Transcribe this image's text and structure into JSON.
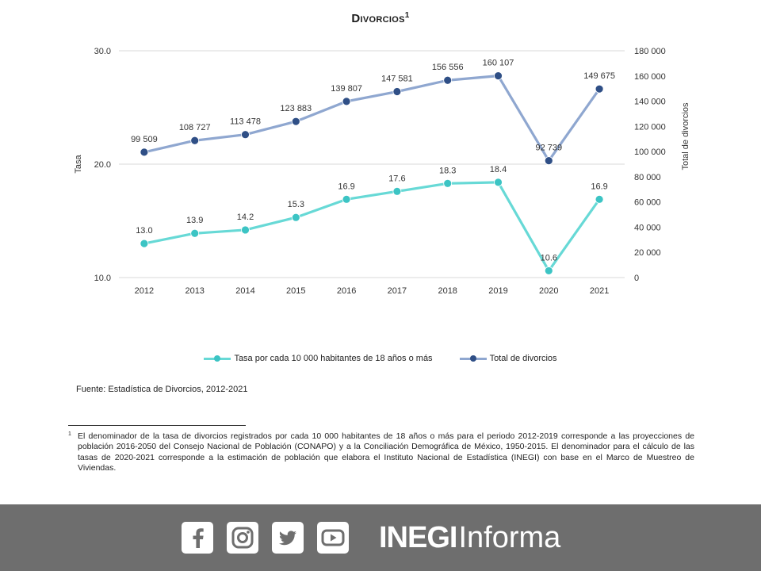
{
  "title": "Divorcios",
  "title_sup": "1",
  "chart_data": {
    "type": "line",
    "categories": [
      "2012",
      "2013",
      "2014",
      "2015",
      "2016",
      "2017",
      "2018",
      "2019",
      "2020",
      "2021"
    ],
    "series": [
      {
        "name": "Tasa por cada 10 000 habitantes de 18 años o más",
        "axis": "left",
        "color": "#67d9d6",
        "values": [
          13.0,
          13.9,
          14.2,
          15.3,
          16.9,
          17.6,
          18.3,
          18.4,
          10.6,
          16.9
        ],
        "labels": [
          "13.0",
          "13.9",
          "14.2",
          "15.3",
          "16.9",
          "17.6",
          "18.3",
          "18.4",
          "10.6",
          "16.9"
        ]
      },
      {
        "name": "Total de divorcios",
        "axis": "right",
        "color": "#8fa7d0",
        "values": [
          99509,
          108727,
          113478,
          123883,
          139807,
          147581,
          156556,
          160107,
          92739,
          149675
        ],
        "labels": [
          "99 509",
          "108 727",
          "113 478",
          "123 883",
          "139 807",
          "147 581",
          "156 556",
          "160 107",
          "92 739",
          "149 675"
        ]
      }
    ],
    "ylabel_left": "Tasa",
    "ylabel_right": "Total de divorcios",
    "ylim_left": [
      10,
      30
    ],
    "ylim_right": [
      0,
      180000
    ],
    "yticks_left": [
      "10.0",
      "20.0",
      "30.0"
    ],
    "yticks_right": [
      "0",
      "20 000",
      "40 000",
      "60 000",
      "80 000",
      "100 000",
      "120 000",
      "140 000",
      "160 000",
      "180 000"
    ],
    "grid": true,
    "legend": "bottom"
  },
  "source": "Fuente: Estadística de Divorcios, 2012-2021",
  "footnote": {
    "mark": "1",
    "text": "El denominador de la tasa de divorcios registrados por cada 10 000 habitantes de 18 años o más para el periodo 2012-2019 corresponde a las proyecciones de población 2016-2050 del Consejo Nacional de Población (CONAPO) y a la Conciliación Demográfica de México, 1950-2015. El denominador para el cálculo de las tasas de 2020-2021 corresponde a la estimación de población que elabora el Instituto Nacional de Estadística (INEGI) con base en el Marco de Muestreo de Viviendas."
  },
  "footer": {
    "icons": [
      "facebook-icon",
      "instagram-icon",
      "twitter-icon",
      "youtube-icon"
    ],
    "brand_bold": "INEGI",
    "brand_light": "Informa",
    "background": "#6e6e6e"
  }
}
